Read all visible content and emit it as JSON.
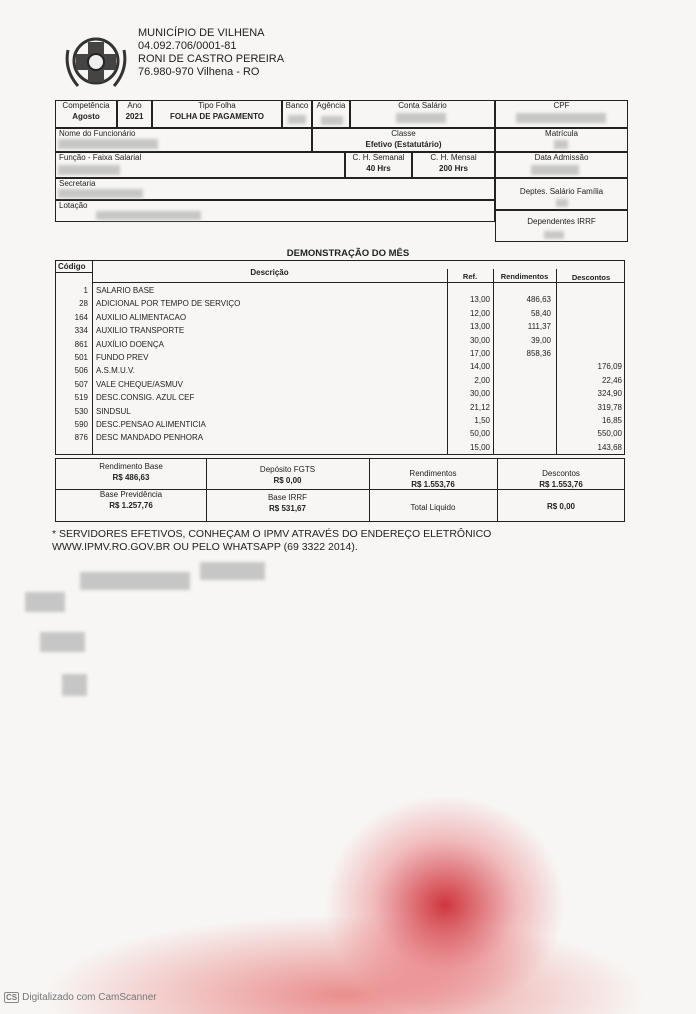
{
  "header": {
    "entity": "MUNICÍPIO DE VILHENA",
    "cnpj": "04.092.706/0001-81",
    "address": "RONI DE CASTRO PEREIRA",
    "city": "76.980-970   Vilhena - RO"
  },
  "info": {
    "competencia_label": "Competência",
    "competencia": "Agosto",
    "ano_label": "Ano",
    "ano": "2021",
    "tipo_label": "Tipo Folha",
    "tipo": "FOLHA DE PAGAMENTO",
    "banco_label": "Banco",
    "agencia_label": "Agência",
    "conta_label": "Conta Salário",
    "cpf_label": "CPF",
    "nome_label": "Nome do Funcionário",
    "classe_label": "Classe",
    "classe": "Efetivo (Estatutário)",
    "matricula_label": "Matrícula",
    "funcao_label": "Função - Faixa Salarial",
    "ch_semanal_label": "C. H. Semanal",
    "ch_semanal": "40 Hrs",
    "ch_mensal_label": "C. H. Mensal",
    "ch_mensal": "200 Hrs",
    "admissao_label": "Data Admissão",
    "secretaria_label": "Secretaria",
    "deptes_label": "Deptes. Salário Família",
    "lotacao_label": "Lotação",
    "irrf_label": "Dependentes IRRF"
  },
  "demo": {
    "title": "DEMONSTRAÇÃO DO MÊS",
    "headers": {
      "codigo": "Código",
      "descricao": "Descrição",
      "ref": "Ref.",
      "rend": "Rendimentos",
      "desc": "Descontos"
    },
    "items": [
      {
        "code": "1",
        "desc": "SALARIO BASE"
      },
      {
        "code": "28",
        "desc": "ADICIONAL POR TEMPO DE SERVIÇO"
      },
      {
        "code": "164",
        "desc": "AUXILIO ALIMENTACAO"
      },
      {
        "code": "334",
        "desc": "AUXILIO TRANSPORTE"
      },
      {
        "code": "861",
        "desc": "AUXÍLIO DOENÇA"
      },
      {
        "code": "501",
        "desc": "FUNDO PREV"
      },
      {
        "code": "506",
        "desc": "A.S.M.U.V."
      },
      {
        "code": "507",
        "desc": "VALE CHEQUE/ASMUV"
      },
      {
        "code": "519",
        "desc": "DESC.CONSIG. AZUL CEF"
      },
      {
        "code": "530",
        "desc": "SINDSUL"
      },
      {
        "code": "590",
        "desc": "DESC.PENSAO ALIMENTICIA"
      },
      {
        "code": "876",
        "desc": "DESC MANDADO PENHORA"
      }
    ],
    "values": [
      {
        "ref": "",
        "rend": "",
        "desc": ""
      },
      {
        "ref": "13,00",
        "rend": "486,63",
        "desc": ""
      },
      {
        "ref": "12,00",
        "rend": "58,40",
        "desc": ""
      },
      {
        "ref": "13,00",
        "rend": "111,37",
        "desc": ""
      },
      {
        "ref": "30,00",
        "rend": "39,00",
        "desc": ""
      },
      {
        "ref": "17,00",
        "rend": "858,36",
        "desc": ""
      },
      {
        "ref": "14,00",
        "rend": "",
        "desc": "176,09"
      },
      {
        "ref": "2,00",
        "rend": "",
        "desc": "22,46"
      },
      {
        "ref": "30,00",
        "rend": "",
        "desc": "324,90"
      },
      {
        "ref": "21,12",
        "rend": "",
        "desc": "319,78"
      },
      {
        "ref": "1,50",
        "rend": "",
        "desc": "16,85"
      },
      {
        "ref": "50,00",
        "rend": "",
        "desc": "550,00"
      },
      {
        "ref": "15,00",
        "rend": "",
        "desc": "143,68"
      }
    ]
  },
  "summary": {
    "rend_base_label": "Rendimento Base",
    "rend_base": "R$ 486,63",
    "fgts_label": "Depósito FGTS",
    "fgts": "R$ 0,00",
    "rend_label": "Rendimentos",
    "rend": "R$ 1.553,76",
    "desc_label": "Descontos",
    "desc": "R$ 1.553,76",
    "prev_label": "Base Previdência",
    "prev": "R$ 1.257,76",
    "irrf_label": "Base IRRF",
    "irrf": "R$ 531,67",
    "liquido_label": "Total Liquido",
    "liquido": "R$ 0,00"
  },
  "footnote": {
    "line1": "* SERVIDORES EFETIVOS, CONHEÇAM O IPMV ATRAVÉS DO ENDEREÇO ELETRÔNICO",
    "line2": "WWW.IPMV.RO.GOV.BR OU PELO WHATSAPP (69 3322 2014)."
  },
  "watermark": {
    "logo": "CS",
    "text": "Digitalizado com CamScanner"
  }
}
